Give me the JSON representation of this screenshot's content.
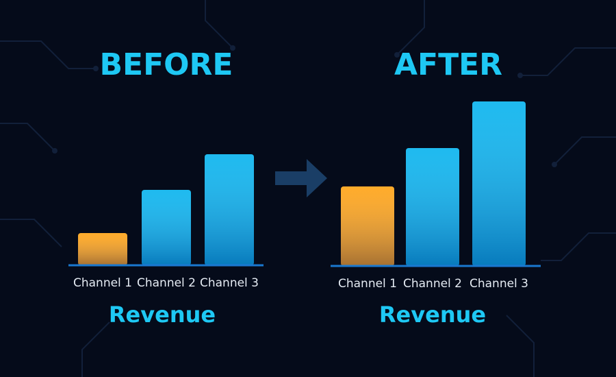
{
  "chart_data": [
    {
      "type": "bar",
      "title": "BEFORE",
      "x_label": "Revenue",
      "categories": [
        "Channel 1",
        "Channel 2",
        "Channel 3"
      ],
      "values": [
        47,
        110,
        162
      ],
      "colors": [
        "#ffa418",
        "#0bb4ee",
        "#0bb4ee"
      ],
      "ylim": [
        0,
        250
      ]
    },
    {
      "type": "bar",
      "title": "AFTER",
      "x_label": "Revenue",
      "categories": [
        "Channel 1",
        "Channel 2",
        "Channel 3"
      ],
      "values": [
        116,
        172,
        240
      ],
      "colors": [
        "#ffa418",
        "#0bb4ee",
        "#0bb4ee"
      ],
      "ylim": [
        0,
        250
      ]
    }
  ]
}
